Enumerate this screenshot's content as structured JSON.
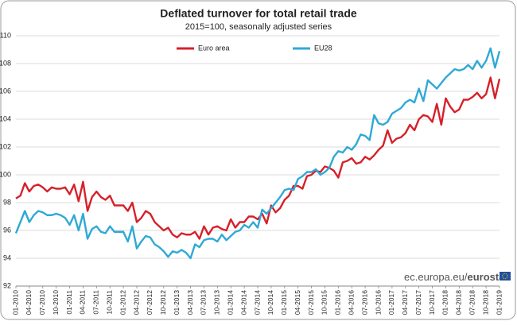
{
  "chart_data": {
    "type": "line",
    "title": "Deflated turnover for total retail trade",
    "subtitle": "2015=100, seasonally adjusted series",
    "source": [
      "ec.europa.eu/",
      "eurostat"
    ],
    "categories": [
      "01-2010",
      null,
      null,
      "04-2010",
      null,
      null,
      "07-2010",
      null,
      null,
      "10-2010",
      null,
      null,
      "01-2011",
      null,
      null,
      "04-2011",
      null,
      null,
      "07-2011",
      null,
      null,
      "10-2011",
      null,
      null,
      "01-2012",
      null,
      null,
      "04-2012",
      null,
      null,
      "07-2012",
      null,
      null,
      "10-2012",
      null,
      null,
      "01-2013",
      null,
      null,
      "04-2013",
      null,
      null,
      "07-2013",
      null,
      null,
      "10-2013",
      null,
      null,
      "01-2014",
      null,
      null,
      "04-2014",
      null,
      null,
      "07-2014",
      null,
      null,
      "10-2014",
      null,
      null,
      "01-2015",
      null,
      null,
      "04-2015",
      null,
      null,
      "07-2015",
      null,
      null,
      "10-2015",
      null,
      null,
      "01-2016",
      null,
      null,
      "04-2016",
      null,
      null,
      "07-2016",
      null,
      null,
      "10-2016",
      null,
      null,
      "01-2017",
      null,
      null,
      "04-2017",
      null,
      null,
      "07-2017",
      null,
      null,
      "10-2017",
      null,
      null,
      "01-2018",
      null,
      null,
      "04-2018",
      null,
      null,
      "07-2018",
      null,
      null,
      "10-2018",
      null,
      null,
      "01-2019"
    ],
    "series": [
      {
        "name": "Euro area",
        "color": "#d7202a",
        "values": [
          98.3,
          98.5,
          99.4,
          98.8,
          99.2,
          99.3,
          99.1,
          98.8,
          99.1,
          99.0,
          99.0,
          99.1,
          98.6,
          99.3,
          98.1,
          99.5,
          97.4,
          98.4,
          98.8,
          98.4,
          98.2,
          98.5,
          97.8,
          97.8,
          97.8,
          97.4,
          98.0,
          96.6,
          96.9,
          97.4,
          97.2,
          96.6,
          96.3,
          96.0,
          96.2,
          95.7,
          95.5,
          95.8,
          95.7,
          95.7,
          95.9,
          95.4,
          96.3,
          95.7,
          96.2,
          96.3,
          96.1,
          96.0,
          96.8,
          96.2,
          96.6,
          96.6,
          97.0,
          97.0,
          96.8,
          97.2,
          96.5,
          97.8,
          97.3,
          97.6,
          98.2,
          98.5,
          99.2,
          99.2,
          99.0,
          99.9,
          100.0,
          100.3,
          100.2,
          100.6,
          100.5,
          100.3,
          99.8,
          100.9,
          101.0,
          101.2,
          100.8,
          100.9,
          101.3,
          101.1,
          101.4,
          101.8,
          102.1,
          103.2,
          102.3,
          102.6,
          102.7,
          103.0,
          103.6,
          103.2,
          104.0,
          104.3,
          104.2,
          103.8,
          105.1,
          103.6,
          105.5,
          104.9,
          104.5,
          104.7,
          105.4,
          105.4,
          105.6,
          105.9,
          105.5,
          105.8,
          107.0,
          105.5,
          106.9
        ]
      },
      {
        "name": "EU28",
        "color": "#2fa9d6",
        "values": [
          95.8,
          96.6,
          97.4,
          96.6,
          97.1,
          97.4,
          97.3,
          97.1,
          97.1,
          97.2,
          97.1,
          96.9,
          96.4,
          97.1,
          96.0,
          97.2,
          95.4,
          96.1,
          96.3,
          95.9,
          95.8,
          96.3,
          95.9,
          95.9,
          95.9,
          95.2,
          96.3,
          94.7,
          95.2,
          95.6,
          95.5,
          95.0,
          94.8,
          94.5,
          94.1,
          94.5,
          94.4,
          94.6,
          94.4,
          94.0,
          95.0,
          94.8,
          95.3,
          95.4,
          95.4,
          95.2,
          95.7,
          95.3,
          95.6,
          95.9,
          96.0,
          96.4,
          96.2,
          96.6,
          96.2,
          97.5,
          97.2,
          97.6,
          98.0,
          98.4,
          98.9,
          99.0,
          98.9,
          99.7,
          99.9,
          100.2,
          100.2,
          100.4,
          100.0,
          100.2,
          100.5,
          101.3,
          101.7,
          101.6,
          102.0,
          101.8,
          102.2,
          102.9,
          102.8,
          102.5,
          104.3,
          103.7,
          103.6,
          103.8,
          104.4,
          104.6,
          104.8,
          105.2,
          105.4,
          105.2,
          106.2,
          105.3,
          106.8,
          106.5,
          106.2,
          106.6,
          107.0,
          107.3,
          107.6,
          107.5,
          107.6,
          107.9,
          107.6,
          108.2,
          107.7,
          108.2,
          109.1,
          107.7,
          108.9
        ]
      }
    ],
    "ylim": [
      92,
      110
    ],
    "yticks": [
      92,
      94,
      96,
      98,
      100,
      102,
      104,
      106,
      108,
      110
    ],
    "grid": true
  }
}
